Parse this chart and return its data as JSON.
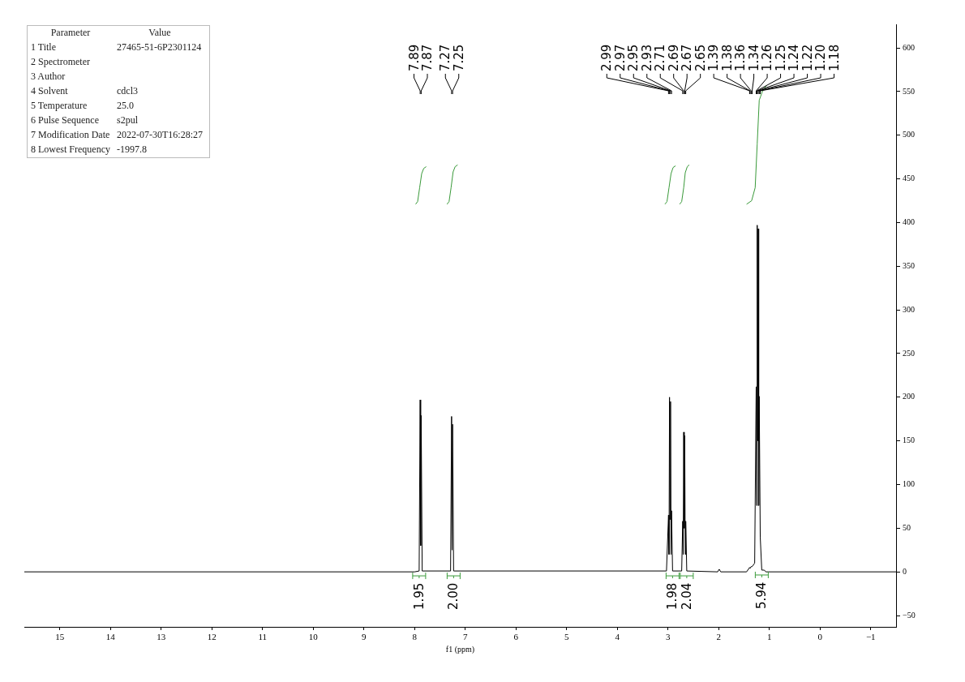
{
  "chart_data": {
    "type": "line",
    "xlabel": "f1 (ppm)",
    "xlim": [
      15.7,
      -1.5
    ],
    "ylim": [
      -63,
      627
    ],
    "xticks": [
      15,
      14,
      13,
      12,
      11,
      10,
      9,
      8,
      7,
      6,
      5,
      4,
      3,
      2,
      1,
      0,
      {
        "value": -1,
        "label": "−1"
      }
    ],
    "yticks": [
      {
        "value": -50,
        "label": "−50"
      },
      0,
      50,
      100,
      150,
      200,
      250,
      300,
      350,
      400,
      450,
      500,
      550,
      600
    ],
    "grid": false,
    "legend": false,
    "marker": "none",
    "line_style": "solid",
    "series": [
      {
        "color": "#000000",
        "x": [
          15.7,
          8.0,
          7.91,
          7.89,
          7.88,
          7.87,
          7.85,
          7.29,
          7.27,
          7.26,
          7.25,
          7.23,
          3.03,
          2.99,
          2.98,
          2.97,
          2.96,
          2.95,
          2.94,
          2.93,
          2.91,
          2.73,
          2.71,
          2.7,
          2.69,
          2.68,
          2.67,
          2.66,
          2.65,
          2.63,
          2.02,
          1.99,
          1.96,
          1.45,
          1.39,
          1.38,
          1.36,
          1.34,
          1.29,
          1.26,
          1.25,
          1.24,
          1.23,
          1.22,
          1.21,
          1.2,
          1.18,
          1.15,
          1.1,
          1.07,
          -1.5
        ],
        "values": [
          0,
          0,
          1,
          197,
          30,
          179,
          1,
          1,
          178,
          25,
          169,
          1,
          1,
          65,
          20,
          200,
          60,
          195,
          20,
          70,
          1,
          1,
          58,
          20,
          160,
          50,
          156,
          20,
          58,
          1,
          0,
          3,
          0,
          0,
          5,
          4,
          6,
          6,
          10,
          212,
          76,
          397,
          150,
          393,
          76,
          201,
          40,
          2,
          2,
          0,
          0
        ]
      },
      {
        "color": "#3a9a3a",
        "x": [
          7.98,
          7.94,
          7.9,
          7.86,
          7.82,
          7.77
        ],
        "values": [
          421,
          424,
          440,
          456,
          462,
          464
        ]
      },
      {
        "color": "#3a9a3a",
        "x": [
          7.36,
          7.32,
          7.28,
          7.24,
          7.2,
          7.15
        ],
        "values": [
          421,
          424,
          440,
          458,
          464,
          466
        ]
      },
      {
        "color": "#3a9a3a",
        "x": [
          3.06,
          3.02,
          2.98,
          2.94,
          2.9,
          2.85
        ],
        "values": [
          421,
          424,
          440,
          456,
          463,
          465
        ]
      },
      {
        "color": "#3a9a3a",
        "x": [
          2.77,
          2.73,
          2.69,
          2.66,
          2.62,
          2.58
        ],
        "values": [
          421,
          424,
          440,
          457,
          464,
          466
        ]
      },
      {
        "color": "#3a9a3a",
        "x": [
          1.45,
          1.35,
          1.28,
          1.24,
          1.2,
          1.12,
          1.05
        ],
        "values": [
          421,
          425,
          440,
          490,
          540,
          553,
          557
        ]
      }
    ],
    "annotations": [
      "Parameter\tValue",
      "1 Title\t27465-51-6P2301124",
      "2 Spectrometer",
      "3 Author",
      "4 Solvent\tcdcl3",
      "5 Temperature\t25.0",
      "6 Pulse Sequence\ts2pul",
      "7 Modification Date\t2022-07-30T16:28:27",
      "8 Lowest Frequency\t-1997.8",
      {
        "text": "7.89",
        "x": 7.89
      },
      {
        "text": "7.87",
        "x": 7.87
      },
      {
        "text": "7.27",
        "x": 7.27
      },
      {
        "text": "7.25",
        "x": 7.25
      },
      {
        "text": "2.99",
        "x": 2.99
      },
      {
        "text": "2.97",
        "x": 2.97
      },
      {
        "text": "2.95",
        "x": 2.95
      },
      {
        "text": "2.93",
        "x": 2.93
      },
      {
        "text": "2.71",
        "x": 2.71
      },
      {
        "text": "2.69",
        "x": 2.69
      },
      {
        "text": "2.67",
        "x": 2.67
      },
      {
        "text": "2.65",
        "x": 2.65
      },
      {
        "text": "1.39",
        "x": 1.39
      },
      {
        "text": "1.38",
        "x": 1.38
      },
      {
        "text": "1.36",
        "x": 1.36
      },
      {
        "text": "1.34",
        "x": 1.34
      },
      {
        "text": "1.26",
        "x": 1.26
      },
      "1.25",
      {
        "text": "1.24",
        "x": 1.24
      },
      {
        "text": "1.22",
        "x": 1.22
      },
      {
        "text": "1.20",
        "x": 1.2
      },
      {
        "text": "1.18",
        "x": 1.18
      },
      {
        "text": "1.95",
        "x": 7.91,
        "y": 1
      },
      {
        "text": "2.00",
        "x": 7.23,
        "y": 1
      },
      {
        "text": "1.98",
        "x": 2.91,
        "y": 1
      },
      {
        "text": "2.04",
        "x": 2.63,
        "y": 1
      },
      {
        "text": "5.94",
        "x": 1.15,
        "y": 2
      }
    ]
  }
}
